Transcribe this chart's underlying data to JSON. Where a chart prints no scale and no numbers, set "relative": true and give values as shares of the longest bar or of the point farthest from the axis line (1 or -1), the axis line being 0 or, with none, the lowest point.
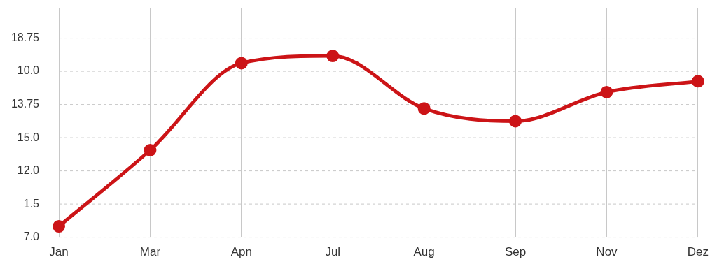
{
  "chart_data": {
    "type": "line",
    "relative": true,
    "categories": [
      "Jan",
      "Mar",
      "Apn",
      "Jul",
      "Aug",
      "Sep",
      "Nov",
      "Dez"
    ],
    "series": [
      {
        "color": "#cc1417",
        "values": [
          0.06,
          0.48,
          0.96,
          1,
          0.71,
          0.64,
          0.8,
          0.86
        ]
      }
    ],
    "annotations": [
      "7.0",
      "1.5",
      "12.0",
      "15.0",
      "13.75",
      "10.0",
      "18.75"
    ],
    "grid": true,
    "legend": false,
    "marker": "circle",
    "line_style": "solid"
  }
}
